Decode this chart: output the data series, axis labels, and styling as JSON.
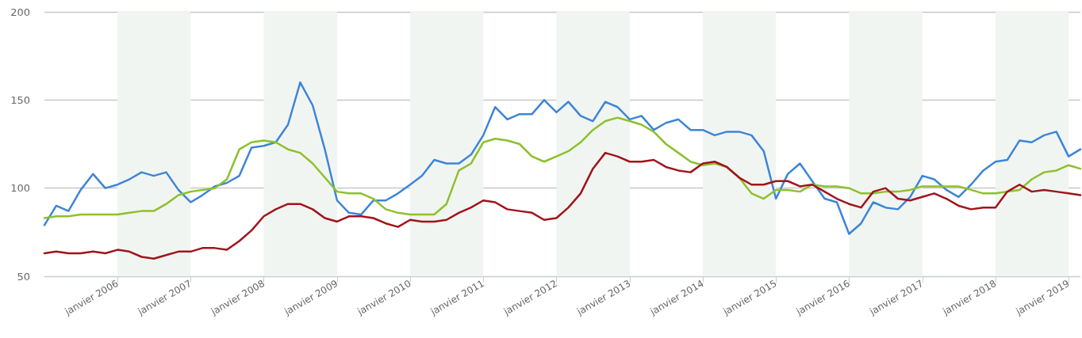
{
  "chart_data": {
    "type": "line",
    "x": [
      "2005-01",
      "2005-03",
      "2005-05",
      "2005-07",
      "2005-09",
      "2005-11",
      "2006-01",
      "2006-03",
      "2006-05",
      "2006-07",
      "2006-09",
      "2006-11",
      "2007-01",
      "2007-03",
      "2007-05",
      "2007-07",
      "2007-09",
      "2007-11",
      "2008-01",
      "2008-03",
      "2008-05",
      "2008-07",
      "2008-09",
      "2008-11",
      "2009-01",
      "2009-03",
      "2009-05",
      "2009-07",
      "2009-09",
      "2009-11",
      "2010-01",
      "2010-03",
      "2010-05",
      "2010-07",
      "2010-09",
      "2010-11",
      "2011-01",
      "2011-03",
      "2011-05",
      "2011-07",
      "2011-09",
      "2011-11",
      "2012-01",
      "2012-03",
      "2012-05",
      "2012-07",
      "2012-09",
      "2012-11",
      "2013-01",
      "2013-03",
      "2013-05",
      "2013-07",
      "2013-09",
      "2013-11",
      "2014-01",
      "2014-03",
      "2014-05",
      "2014-07",
      "2014-09",
      "2014-11",
      "2015-01",
      "2015-03",
      "2015-05",
      "2015-07",
      "2015-09",
      "2015-11",
      "2016-01",
      "2016-03",
      "2016-05",
      "2016-07",
      "2016-09",
      "2016-11",
      "2017-01",
      "2017-03",
      "2017-05",
      "2017-07",
      "2017-09",
      "2017-11",
      "2018-01",
      "2018-03",
      "2018-05",
      "2018-07",
      "2018-09",
      "2018-11",
      "2019-01",
      "2019-03"
    ],
    "series": [
      {
        "color": "#3d85d8",
        "values": [
          79,
          90,
          87,
          99,
          108,
          100,
          102,
          105,
          109,
          107,
          109,
          99,
          92,
          96,
          101,
          103,
          107,
          123,
          124,
          126,
          136,
          160,
          147,
          122,
          93,
          86,
          85,
          93,
          93,
          97,
          102,
          107,
          116,
          114,
          114,
          119,
          130,
          146,
          139,
          142,
          142,
          150,
          143,
          149,
          141,
          138,
          149,
          146,
          139,
          141,
          133,
          137,
          139,
          133,
          133,
          130,
          132,
          132,
          130,
          121,
          94,
          108,
          114,
          104,
          94,
          92,
          74,
          80,
          92,
          89,
          88,
          95,
          107,
          105,
          99,
          95,
          102,
          110,
          115,
          116,
          127,
          126,
          130,
          132,
          118,
          122
        ]
      },
      {
        "color": "#8dc02c",
        "values": [
          83,
          84,
          84,
          85,
          85,
          85,
          85,
          86,
          87,
          87,
          91,
          96,
          98,
          99,
          100,
          105,
          122,
          126,
          127,
          126,
          122,
          120,
          114,
          106,
          98,
          97,
          97,
          94,
          88,
          86,
          85,
          85,
          85,
          91,
          110,
          114,
          126,
          128,
          127,
          125,
          118,
          115,
          118,
          121,
          126,
          133,
          138,
          140,
          138,
          136,
          132,
          125,
          120,
          115,
          113,
          114,
          112,
          106,
          97,
          94,
          99,
          99,
          98,
          102,
          101,
          101,
          100,
          97,
          97,
          98,
          98,
          99,
          101,
          101,
          101,
          101,
          99,
          97,
          97,
          98,
          99,
          105,
          109,
          110,
          113,
          111
        ]
      },
      {
        "color": "#a0141c",
        "values": [
          63,
          64,
          63,
          63,
          64,
          63,
          65,
          64,
          61,
          60,
          62,
          64,
          64,
          66,
          66,
          65,
          70,
          76,
          84,
          88,
          91,
          91,
          88,
          83,
          81,
          84,
          84,
          83,
          80,
          78,
          82,
          81,
          81,
          82,
          86,
          89,
          93,
          92,
          88,
          87,
          86,
          82,
          83,
          89,
          97,
          111,
          120,
          118,
          115,
          115,
          116,
          112,
          110,
          109,
          114,
          115,
          112,
          106,
          102,
          102,
          104,
          104,
          101,
          102,
          98,
          94,
          91,
          89,
          98,
          100,
          94,
          93,
          95,
          97,
          94,
          90,
          88,
          89,
          89,
          98,
          102,
          98,
          99,
          98,
          97,
          96
        ]
      }
    ],
    "xlim": [
      "2005-01",
      "2019-03"
    ],
    "xticks": [
      {
        "value": "2006-01",
        "label": "janvier 2006"
      },
      {
        "value": "2007-01",
        "label": "janvier 2007"
      },
      {
        "value": "2008-01",
        "label": "janvier 2008"
      },
      {
        "value": "2009-01",
        "label": "janvier 2009"
      },
      {
        "value": "2010-01",
        "label": "janvier 2010"
      },
      {
        "value": "2011-01",
        "label": "janvier 2011"
      },
      {
        "value": "2012-01",
        "label": "janvier 2012"
      },
      {
        "value": "2013-01",
        "label": "janvier 2013"
      },
      {
        "value": "2014-01",
        "label": "janvier 2014"
      },
      {
        "value": "2015-01",
        "label": "janvier 2015"
      },
      {
        "value": "2016-01",
        "label": "janvier 2016"
      },
      {
        "value": "2017-01",
        "label": "janvier 2017"
      },
      {
        "value": "2018-01",
        "label": "janvier 2018"
      },
      {
        "value": "2019-01",
        "label": "janvier 2019"
      }
    ],
    "ylim": [
      50,
      200
    ],
    "yticks": [
      50,
      100,
      150,
      200
    ],
    "bands": [
      {
        "axis": "x",
        "from": "2006-01",
        "to": "2007-01",
        "color": "#f1f5f1"
      },
      {
        "axis": "x",
        "from": "2008-01",
        "to": "2009-01",
        "color": "#f1f5f1"
      },
      {
        "axis": "x",
        "from": "2010-01",
        "to": "2011-01",
        "color": "#f1f5f1"
      },
      {
        "axis": "x",
        "from": "2012-01",
        "to": "2013-01",
        "color": "#f1f5f1"
      },
      {
        "axis": "x",
        "from": "2014-01",
        "to": "2015-01",
        "color": "#f1f5f1"
      },
      {
        "axis": "x",
        "from": "2016-01",
        "to": "2017-01",
        "color": "#f1f5f1"
      },
      {
        "axis": "x",
        "from": "2018-01",
        "to": "2019-01",
        "color": "#f1f5f1"
      }
    ],
    "grid": "y",
    "marker": "none",
    "line_style": "solid"
  }
}
